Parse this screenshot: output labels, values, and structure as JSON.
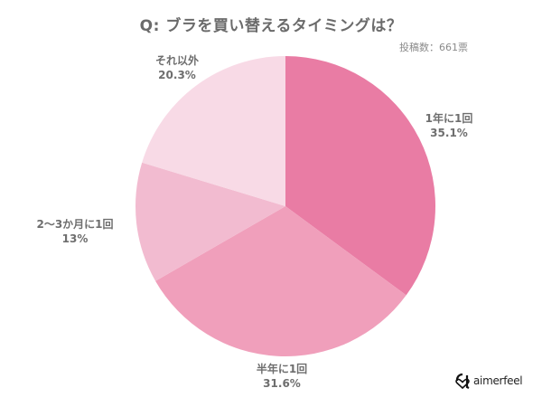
{
  "title": "Q: ブラを買い替えるタイミングは？",
  "subtitle": "投稿数：661票",
  "brand": {
    "name": "aimerfeel"
  },
  "chart_data": {
    "type": "pie",
    "title": "Q: ブラを買い替えるタイミングは？",
    "subtitle": "投稿数：661票",
    "total_votes": 661,
    "start_angle_deg": 0,
    "direction": "clockwise",
    "categories": [
      "1年に1回",
      "半年に1回",
      "2〜3か月に1回",
      "それ以外"
    ],
    "values": [
      35.1,
      31.6,
      13,
      20.3
    ],
    "value_labels": [
      "35.1%",
      "31.6%",
      "13%",
      "20.3%"
    ],
    "colors": [
      "#E97CA4",
      "#F09FBB",
      "#F2BBD0",
      "#F8DAE6"
    ],
    "legend": "none (labels outside slices)"
  },
  "labels": [
    {
      "name": "1年に1回",
      "value": "35.1%"
    },
    {
      "name": "半年に1回",
      "value": "31.6%"
    },
    {
      "name": "2〜3か月に1回",
      "value": "13%"
    },
    {
      "name": "それ以外",
      "value": "20.3%"
    }
  ]
}
